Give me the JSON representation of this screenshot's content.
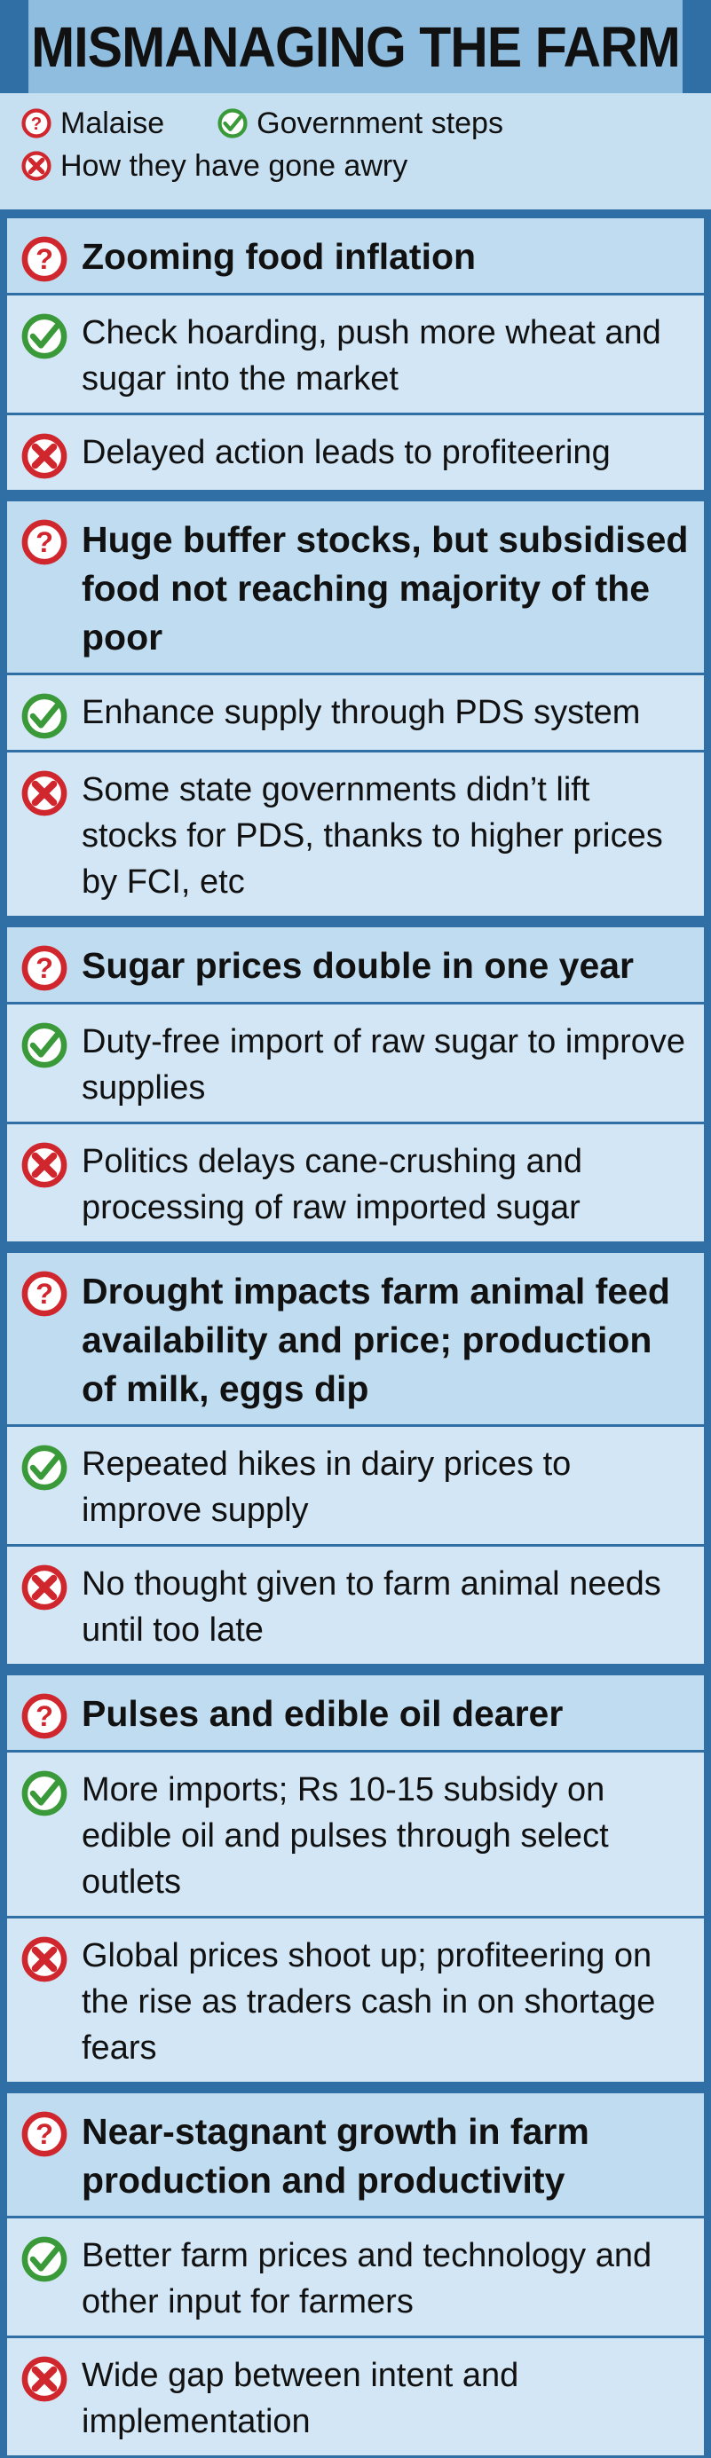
{
  "title": "MISMANAGING THE FARM",
  "legend": {
    "malaise": "Malaise",
    "steps": "Government steps",
    "awry": "How they have gone awry"
  },
  "colors": {
    "background": "#2f6fa6",
    "malaise_icon": "#d0262d",
    "check_icon": "#3a9a3a",
    "cross_icon": "#d0262d"
  },
  "icons": {
    "malaise": "question-icon",
    "steps": "check-icon",
    "awry": "cross-icon"
  },
  "groups": [
    {
      "malaise": "Zooming food inflation",
      "step": "Check hoarding, push more wheat and sugar into the market",
      "awry": "Delayed action leads to profiteering"
    },
    {
      "malaise": "Huge buffer stocks, but subsidised food not reaching majority of the poor",
      "step": "Enhance supply through PDS system",
      "awry": "Some state governments didn’t lift stocks for PDS, thanks to higher prices by FCI, etc"
    },
    {
      "malaise": "Sugar prices double in one year",
      "step": "Duty-free import of raw sugar to improve supplies",
      "awry": "Politics delays cane-crushing and processing of raw imported sugar"
    },
    {
      "malaise": "Drought impacts farm animal feed availability and price; production of milk, eggs dip",
      "step": "Repeated hikes in dairy prices to improve supply",
      "awry": "No thought given to farm animal needs until too late"
    },
    {
      "malaise": "Pulses and edible oil dearer",
      "step": "More imports; Rs 10-15 subsidy on edible oil and pulses through select outlets",
      "awry": "Global prices shoot up; profiteering on the rise as traders cash in on shortage fears"
    },
    {
      "malaise": "Near-stagnant growth in farm production and productivity",
      "step": "Better farm prices and technology and other input for farmers",
      "awry": "Wide gap between intent and implementation"
    }
  ]
}
